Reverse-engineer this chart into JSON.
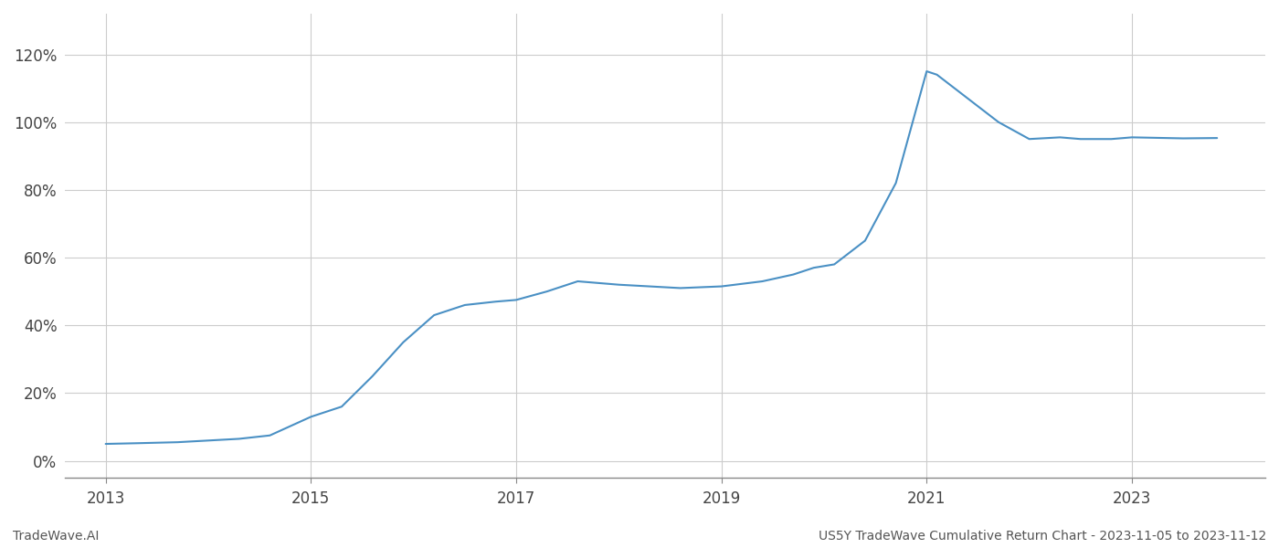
{
  "title": "",
  "footer_left": "TradeWave.AI",
  "footer_right": "US5Y TradeWave Cumulative Return Chart - 2023-11-05 to 2023-11-12",
  "line_color": "#4a90c4",
  "background_color": "#ffffff",
  "grid_color": "#cccccc",
  "x_data": [
    2013.0,
    2013.3,
    2013.7,
    2014.0,
    2014.3,
    2014.6,
    2015.0,
    2015.1,
    2015.3,
    2015.6,
    2015.9,
    2016.2,
    2016.5,
    2016.8,
    2017.0,
    2017.3,
    2017.6,
    2018.0,
    2018.3,
    2018.6,
    2019.0,
    2019.4,
    2019.7,
    2019.9,
    2020.1,
    2020.4,
    2020.7,
    2021.0,
    2021.1,
    2021.4,
    2021.7,
    2022.0,
    2022.3,
    2022.5,
    2022.8,
    2023.0,
    2023.5,
    2023.83
  ],
  "y_data": [
    5.0,
    5.2,
    5.5,
    6.0,
    6.5,
    7.5,
    13.0,
    14.0,
    16.0,
    25.0,
    35.0,
    43.0,
    46.0,
    47.0,
    47.5,
    50.0,
    53.0,
    52.0,
    51.5,
    51.0,
    51.5,
    53.0,
    55.0,
    57.0,
    58.0,
    65.0,
    82.0,
    115.0,
    114.0,
    107.0,
    100.0,
    95.0,
    95.5,
    95.0,
    95.0,
    95.5,
    95.2,
    95.3
  ],
  "xlim": [
    2012.6,
    2024.3
  ],
  "ylim": [
    -5,
    132
  ],
  "yticks": [
    0,
    20,
    40,
    60,
    80,
    100,
    120
  ],
  "xticks": [
    2013,
    2015,
    2017,
    2019,
    2021,
    2023
  ],
  "line_width": 1.5,
  "font_family": "DejaVu Sans",
  "footer_fontsize": 10,
  "tick_fontsize": 12,
  "tick_color": "#444444"
}
